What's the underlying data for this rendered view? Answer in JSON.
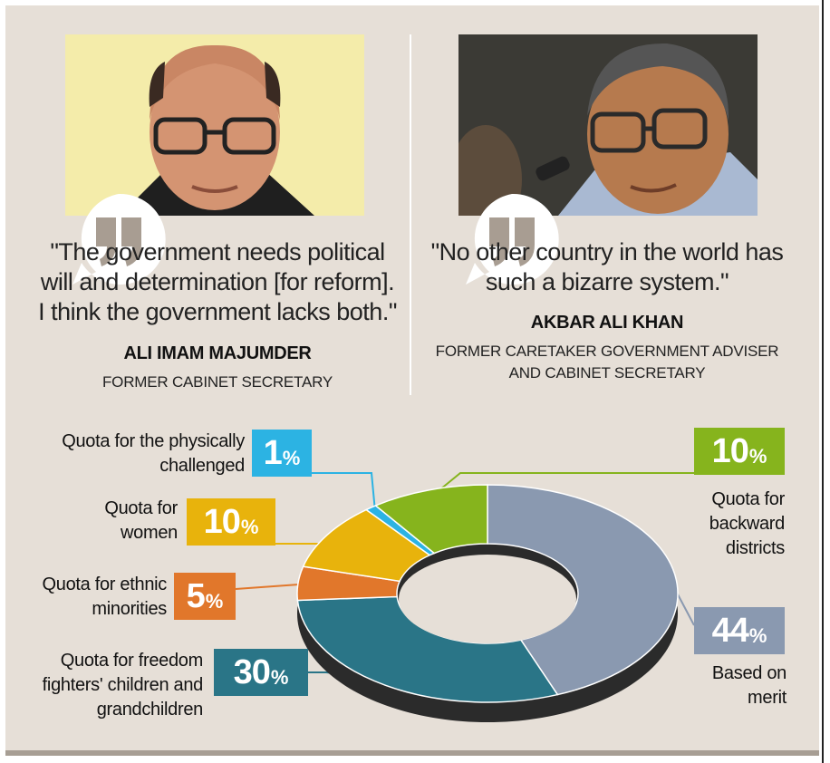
{
  "quotes": {
    "left": {
      "text": "\"The government needs political will and determination [for reform]. I think the government lacks both.\"",
      "name": "ALI IMAM MAJUMDER",
      "role": "FORMER CABINET SECRETARY"
    },
    "right": {
      "text": "\"No other country in the world has such a bizarre system.\"",
      "name": "AKBAR ALI KHAN",
      "role": "FORMER CARETAKER GOVERNMENT ADVISER AND CABINET SECRETARY"
    }
  },
  "colors": {
    "background": "#e6dfd7",
    "merit": "#8a99b0",
    "freedom_fighters": "#2a7587",
    "ethnic": "#e1772b",
    "women": "#e8b30c",
    "physically": "#2cb3e3",
    "backward": "#86b41d"
  },
  "chart_data": {
    "type": "pie",
    "style": "donut",
    "slices": [
      {
        "key": "merit",
        "label": "Based on merit",
        "value": 44,
        "display": "44",
        "color": "#8a99b0"
      },
      {
        "key": "freedom",
        "label": "Quota for freedom fighters' children and grandchildren",
        "value": 30,
        "display": "30",
        "color": "#2a7587"
      },
      {
        "key": "ethnic",
        "label": "Quota for ethnic minorities",
        "value": 5,
        "display": "5",
        "color": "#e1772b"
      },
      {
        "key": "women",
        "label": "Quota for women",
        "value": 10,
        "display": "10",
        "color": "#e8b30c"
      },
      {
        "key": "physically",
        "label": "Quota for the physically challenged",
        "value": 1,
        "display": "1",
        "color": "#2cb3e3"
      },
      {
        "key": "backward",
        "label": "Quota for backward districts",
        "value": 10,
        "display": "10",
        "color": "#86b41d"
      }
    ],
    "unit": "%"
  }
}
